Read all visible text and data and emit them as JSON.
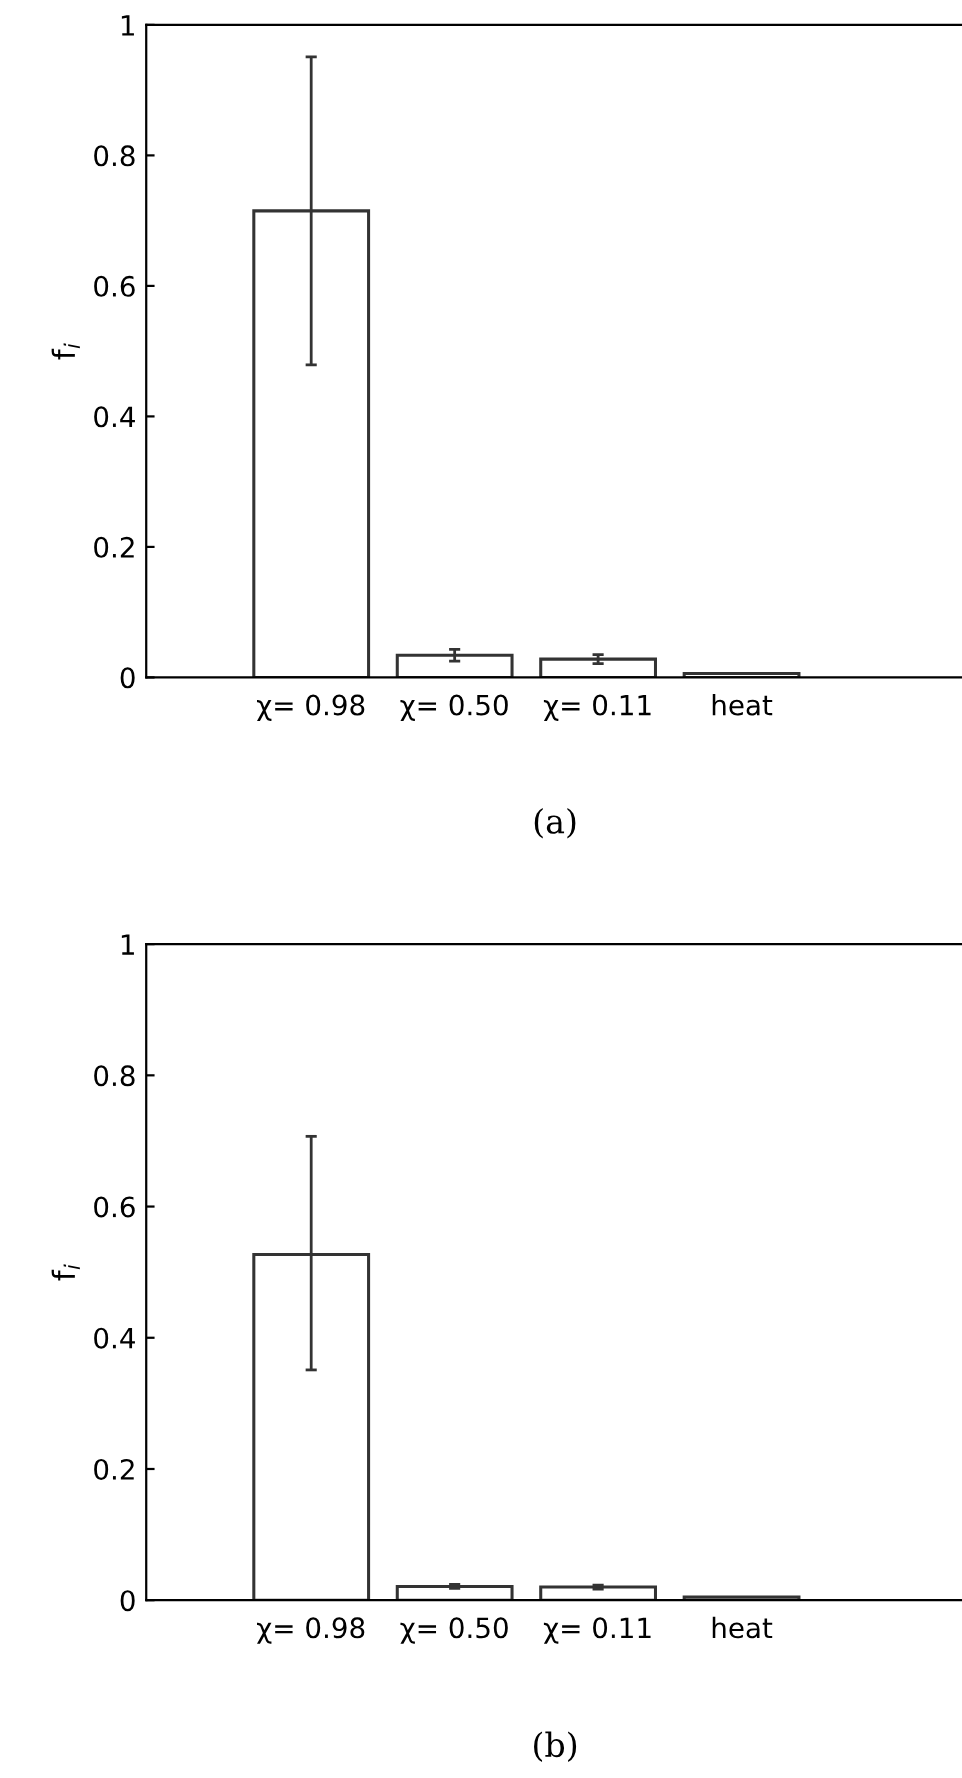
{
  "chart_data": [
    {
      "type": "bar",
      "categories": [
        "χ= 0.98",
        "χ= 0.50",
        "χ= 0.11",
        "heat"
      ],
      "values": [
        0.715,
        0.034,
        0.028,
        0.006
      ],
      "colors": [
        "#ffffff",
        "#ffffff",
        "#ffffff",
        "#ffffff"
      ],
      "errors": [
        [
          0.479,
          0.951
        ],
        [
          0.025,
          0.043
        ],
        [
          0.021,
          0.035
        ],
        null
      ],
      "ylabel": "f$_{i}$",
      "ylim": [
        0,
        1
      ],
      "yticks": [
        0,
        0.2,
        0.4,
        0.6,
        0.8,
        1
      ],
      "annotations": [
        "(a)"
      ]
    },
    {
      "type": "bar",
      "categories": [
        "χ= 0.98",
        "χ= 0.50",
        "χ= 0.11",
        "heat"
      ],
      "values": [
        0.527,
        0.021,
        0.02,
        0.005
      ],
      "colors": [
        "#ffffff",
        "#ffffff",
        "#ffffff",
        "#ffffff"
      ],
      "errors": [
        [
          0.351,
          0.707
        ],
        [
          0.018,
          0.024
        ],
        [
          0.017,
          0.023
        ],
        null
      ],
      "ylabel": "f$_{i}$",
      "ylim": [
        0,
        1
      ],
      "yticks": [
        0,
        0.2,
        0.4,
        0.6,
        0.8,
        1
      ],
      "annotations": [
        "(b)"
      ]
    }
  ]
}
